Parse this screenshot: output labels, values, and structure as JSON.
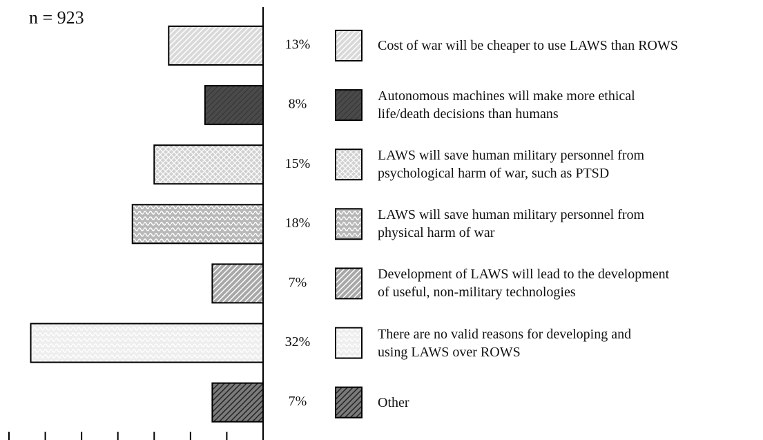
{
  "chart_data": {
    "type": "bar",
    "orientation": "horizontal",
    "annotation": "n = 923",
    "categories": [
      "Cost of war will be cheaper to use LAWS than ROWS",
      "Autonomous machines will make more ethical\nlife/death decisions than humans",
      "LAWS will save human military personnel from\npsychological harm of war, such as PTSD",
      "LAWS will save human military personnel from\nphysical harm of war",
      "Development of LAWS will lead to the development\nof useful, non-military technologies",
      "There are no valid reasons for developing and\nusing LAWS over ROWS",
      "Other"
    ],
    "values": [
      13,
      8,
      15,
      18,
      7,
      32,
      7
    ],
    "value_labels": [
      "13%",
      "8%",
      "15%",
      "18%",
      "7%",
      "32%",
      "7%"
    ],
    "colors": [
      "#d9d9d9",
      "#4a4a4a",
      "#d0d0d0",
      "#b8b8b8",
      "#a8a8a8",
      "#eeeeee",
      "#7a7a7a"
    ],
    "xlim": [
      0,
      35
    ],
    "xticks": [
      0,
      5,
      10,
      15,
      20,
      25,
      30,
      35
    ]
  }
}
